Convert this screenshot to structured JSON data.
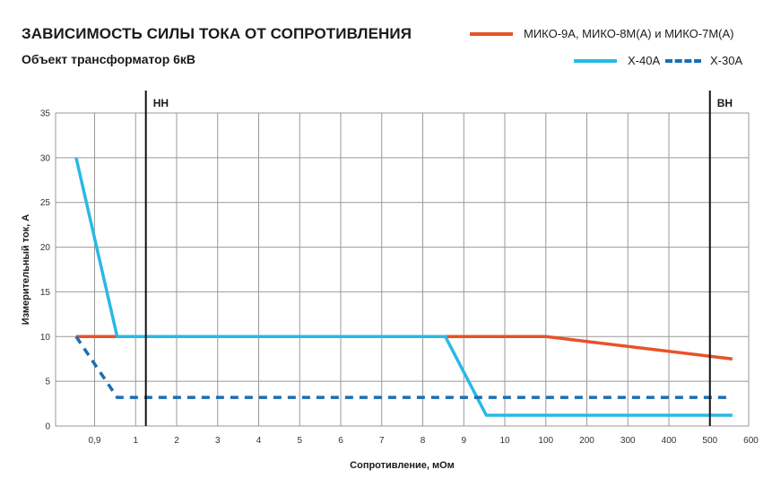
{
  "header": {
    "title": "ЗАВИСИМОСТЬ СИЛЫ ТОКА ОТ СОПРОТИВЛЕНИЯ",
    "subtitle": "Объект трансформатор 6кВ"
  },
  "legend": {
    "item1": "МИКО-9А, МИКО-8М(А) и МИКО-7М(А)",
    "item2": "Х-40А",
    "item3": "Х-30А"
  },
  "colors": {
    "miko": "#e8522a",
    "x40": "#29b9e6",
    "x30": "#1a6fb4",
    "grid": "#999999",
    "marker": "#111111"
  },
  "chart_data": {
    "type": "line",
    "title": "ЗАВИСИМОСТЬ СИЛЫ ТОКА ОТ СОПРОТИВЛЕНИЯ",
    "subtitle": "Объект трансформатор 6кВ",
    "xlabel": "Сопротивление, мОм",
    "ylabel": "Измерительный ток, А",
    "x_scale": "categorical",
    "x_ticks": [
      "0,9",
      "1",
      "2",
      "3",
      "4",
      "5",
      "6",
      "7",
      "8",
      "9",
      "10",
      "100",
      "200",
      "300",
      "400",
      "500",
      "600"
    ],
    "y_ticks": [
      0,
      5,
      10,
      15,
      20,
      25,
      30,
      35
    ],
    "ylim": [
      0,
      35
    ],
    "grid": true,
    "legend_position": "top-right",
    "markers": [
      {
        "label": "НН",
        "x_index": 1.25
      },
      {
        "label": "ВН",
        "x_index": 15.0
      }
    ],
    "series": [
      {
        "name": "МИКО-9А, МИКО-8М(А) и МИКО-7М(А)",
        "style": "solid",
        "points": [
          [
            -0.45,
            10
          ],
          [
            11.0,
            10
          ],
          [
            15.55,
            7.5
          ]
        ]
      },
      {
        "name": "Х-40А",
        "style": "solid",
        "points": [
          [
            -0.45,
            30
          ],
          [
            0.55,
            10
          ],
          [
            8.55,
            10
          ],
          [
            9.55,
            1.2
          ],
          [
            15.55,
            1.2
          ]
        ]
      },
      {
        "name": "Х-30А",
        "style": "dashed",
        "points": [
          [
            -0.45,
            10
          ],
          [
            0.55,
            3.2
          ],
          [
            15.55,
            3.2
          ]
        ]
      }
    ]
  }
}
